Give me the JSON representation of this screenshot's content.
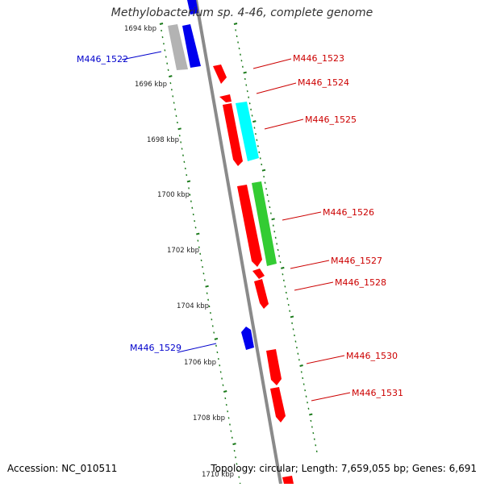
{
  "title": "Methylobacterium sp. 4-46, complete genome",
  "accession": "Accession: NC_010511",
  "summary": "Topology: circular; Length: 7,659,055 bp; Genes: 6,691",
  "scale_labels": [
    "1694 kbp",
    "1696 kbp",
    "1698 kbp",
    "1700 kbp",
    "1702 kbp",
    "1704 kbp",
    "1706 kbp",
    "1708 kbp",
    "1710 kbp"
  ],
  "colors": {
    "forward": "#ff0000",
    "reverse": "#0000ff",
    "cyan": "#00ffff",
    "green": "#33cc33",
    "gray": "#b0b0b0",
    "label_red": "#cc0000",
    "label_blue": "#0000cc",
    "tick": "#1a7a1a"
  },
  "genes": [
    {
      "label": "M446_1522",
      "color": "blue"
    },
    {
      "label": "M446_1523",
      "color": "red"
    },
    {
      "label": "M446_1524",
      "color": "red"
    },
    {
      "label": "M446_1525",
      "color": "red"
    },
    {
      "label": "M446_1526",
      "color": "red"
    },
    {
      "label": "M446_1527",
      "color": "red"
    },
    {
      "label": "M446_1528",
      "color": "red"
    },
    {
      "label": "M446_1529",
      "color": "blue"
    },
    {
      "label": "M446_1530",
      "color": "red"
    },
    {
      "label": "M446_1531",
      "color": "red"
    }
  ]
}
